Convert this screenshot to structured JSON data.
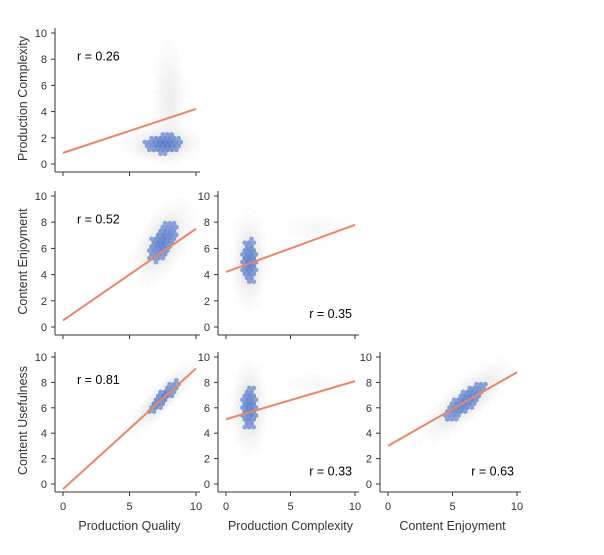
{
  "colors": {
    "hex_dense": "#4a6fc4",
    "hex_sparse": "#9a9a9a",
    "fit_line": "#e8876a",
    "axis": "#333333"
  },
  "chart_data": {
    "type": "pair-grid-hexbin-regression",
    "variables": [
      "Production Quality",
      "Production Complexity",
      "Content Enjoyment",
      "Content Usefulness"
    ],
    "axis_range": [
      0,
      10
    ],
    "y_ticks": [
      0,
      2,
      4,
      6,
      8,
      10
    ],
    "x_ticks": [
      0,
      5,
      10
    ],
    "grid": false,
    "panels": [
      {
        "id": "pq-pc",
        "row": 0,
        "col": 0,
        "x_var": "Production Quality",
        "y_var": "Production Complexity",
        "r_label": "r = 0.26",
        "r_position": "top-left",
        "fit_line": [
          [
            0,
            0.85
          ],
          [
            10,
            4.2
          ]
        ],
        "density_peaks": [
          {
            "x": 7.5,
            "y": 1.5,
            "sx": 1.3,
            "sy": 0.6,
            "w": 1.0
          },
          {
            "x": 8.0,
            "y": 5.0,
            "sx": 0.6,
            "sy": 2.2,
            "w": 0.45
          }
        ]
      },
      {
        "id": "pq-ce",
        "row": 1,
        "col": 0,
        "x_var": "Production Quality",
        "y_var": "Content Enjoyment",
        "r_label": "r = 0.52",
        "r_position": "top-left",
        "fit_line": [
          [
            0,
            0.5
          ],
          [
            10,
            7.5
          ]
        ],
        "density_peaks": [
          {
            "x": 7.5,
            "y": 6.5,
            "sx": 1.0,
            "sy": 1.4,
            "w": 1.0,
            "rho": 0.55
          }
        ]
      },
      {
        "id": "pc-ce",
        "row": 1,
        "col": 1,
        "x_var": "Production Complexity",
        "y_var": "Content Enjoyment",
        "r_label": "r = 0.35",
        "r_position": "bottom-right",
        "fit_line": [
          [
            0,
            4.2
          ],
          [
            10,
            7.8
          ]
        ],
        "density_peaks": [
          {
            "x": 1.8,
            "y": 5.0,
            "sx": 0.6,
            "sy": 1.6,
            "w": 1.0
          },
          {
            "x": 7.0,
            "y": 7.5,
            "sx": 1.5,
            "sy": 0.6,
            "w": 0.2
          }
        ]
      },
      {
        "id": "pq-cu",
        "row": 2,
        "col": 0,
        "x_var": "Production Quality",
        "y_var": "Content Usefulness",
        "r_label": "r = 0.81",
        "r_position": "top-left",
        "fit_line": [
          [
            0,
            -0.4
          ],
          [
            10,
            9.1
          ]
        ],
        "density_peaks": [
          {
            "x": 7.5,
            "y": 6.8,
            "sx": 1.1,
            "sy": 1.2,
            "w": 1.0,
            "rho": 0.85
          }
        ]
      },
      {
        "id": "pc-cu",
        "row": 2,
        "col": 1,
        "x_var": "Production Complexity",
        "y_var": "Content Usefulness",
        "r_label": "r = 0.33",
        "r_position": "bottom-right",
        "fit_line": [
          [
            0,
            5.1
          ],
          [
            10,
            8.1
          ]
        ],
        "density_peaks": [
          {
            "x": 1.8,
            "y": 6.0,
            "sx": 0.6,
            "sy": 1.6,
            "w": 1.0
          },
          {
            "x": 7.0,
            "y": 7.8,
            "sx": 1.5,
            "sy": 0.5,
            "w": 0.2
          }
        ]
      },
      {
        "id": "ce-cu",
        "row": 2,
        "col": 2,
        "x_var": "Content Enjoyment",
        "y_var": "Content Usefulness",
        "r_label": "r = 0.63",
        "r_position": "bottom-right",
        "fit_line": [
          [
            0,
            3.0
          ],
          [
            10,
            8.8
          ]
        ],
        "density_peaks": [
          {
            "x": 6.0,
            "y": 6.5,
            "sx": 1.5,
            "sy": 1.4,
            "w": 1.0,
            "rho": 0.8
          }
        ]
      }
    ]
  }
}
